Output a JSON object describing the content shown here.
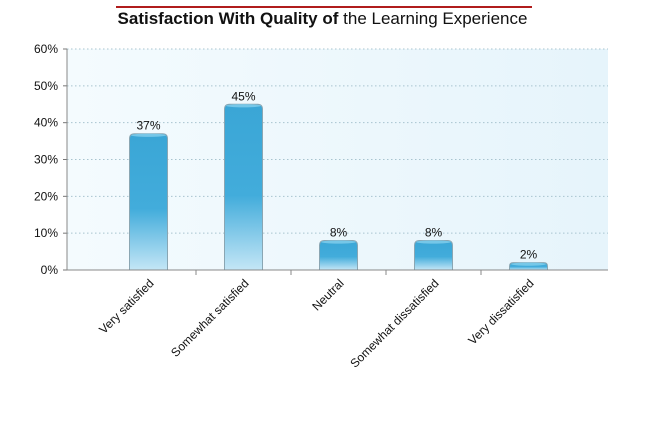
{
  "title_bold": "Satisfaction With Quality of",
  "title_regular": "the Learning Experience",
  "colors": {
    "accent_rule": "#b01c1c",
    "bar_top": "#3ea8d8",
    "bar_bottom": "#bfe3f5",
    "plot_bg": "#eaf6fc",
    "grid": "#a8c4cf"
  },
  "chart_data": {
    "type": "bar",
    "categories": [
      "Very satisfied",
      "Somewhat satisfied",
      "Neutral",
      "Somewhat dissatisfied",
      "Very dissatisfied"
    ],
    "values": [
      37,
      45,
      8,
      8,
      2
    ],
    "data_labels": [
      "37%",
      "45%",
      "8%",
      "8%",
      "2%"
    ],
    "yticks": [
      "0%",
      "10%",
      "20%",
      "30%",
      "40%",
      "50%",
      "60%"
    ],
    "ylim": [
      0,
      60
    ],
    "grid": true,
    "legend": "none"
  }
}
